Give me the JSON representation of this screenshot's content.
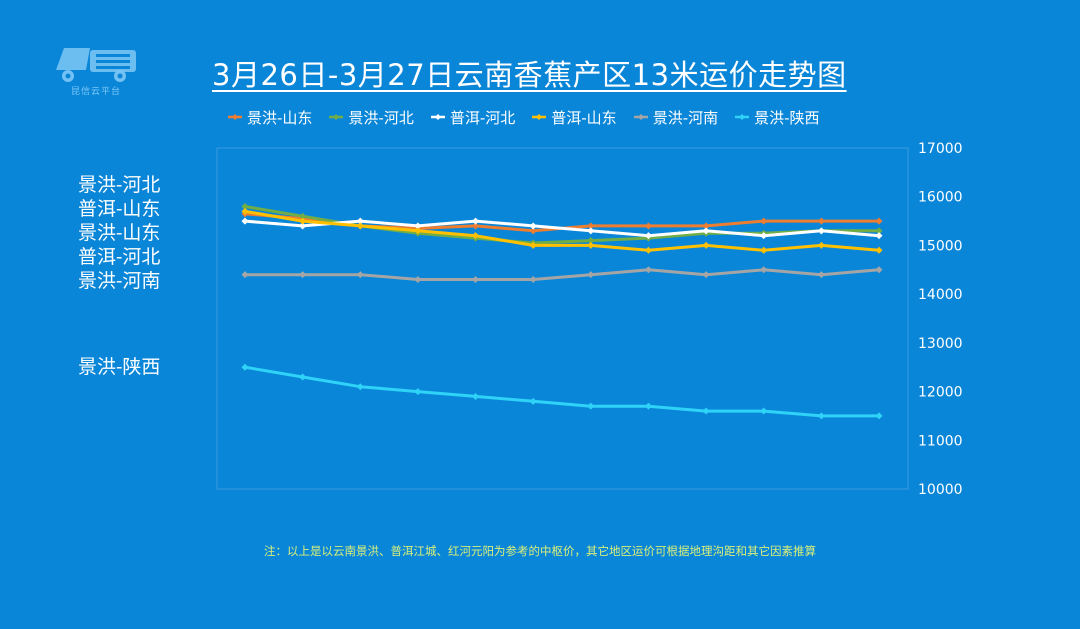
{
  "logo": {
    "icon": "truck-logo-icon",
    "caption": "昆信云平台"
  },
  "colors": {
    "background": "#0a86d8",
    "景洪-山东": "#ed7d31",
    "景洪-河北": "#70ad47",
    "普洱-河北": "#ffffff",
    "普洱-山东": "#ffc000",
    "景洪-河南": "#a5a5a5",
    "景洪-陕西": "#2ed3f7"
  },
  "side_labels": [
    "景洪-河北",
    "普洱-山东",
    "景洪-山东",
    "普洱-河北",
    "景洪-河南",
    "景洪-陕西"
  ],
  "note": "注：以上是以云南景洪、普洱江城、红河元阳为参考的中枢价，其它地区运价可根据地理沟距和其它因素推算",
  "chart_data": {
    "type": "line",
    "title": "3月26日-3月27日云南香蕉产区13米运价走势图",
    "xlabel": "",
    "ylabel": "",
    "ylim": [
      10000,
      17000
    ],
    "yticks": [
      "10000",
      "11000",
      "12000",
      "13000",
      "14000",
      "15000",
      "16000",
      "17000"
    ],
    "y_axis_position": "right",
    "grid": false,
    "legend_position": "top",
    "x": [
      1,
      2,
      3,
      4,
      5,
      6,
      7,
      8,
      9,
      10,
      11,
      12
    ],
    "series": [
      {
        "name": "景洪-山东",
        "values": [
          15650,
          15550,
          15400,
          15350,
          15400,
          15300,
          15400,
          15400,
          15400,
          15500,
          15500,
          15500
        ]
      },
      {
        "name": "景洪-河北",
        "values": [
          15800,
          15600,
          15400,
          15250,
          15150,
          15050,
          15100,
          15150,
          15250,
          15250,
          15300,
          15300
        ]
      },
      {
        "name": "普洱-河北",
        "values": [
          15500,
          15400,
          15500,
          15400,
          15500,
          15400,
          15300,
          15200,
          15300,
          15200,
          15300,
          15200
        ]
      },
      {
        "name": "普洱-山东",
        "values": [
          15700,
          15500,
          15400,
          15300,
          15200,
          15000,
          15000,
          14900,
          15000,
          14900,
          15000,
          14900
        ]
      },
      {
        "name": "景洪-河南",
        "values": [
          14400,
          14400,
          14400,
          14300,
          14300,
          14300,
          14400,
          14500,
          14400,
          14500,
          14400,
          14500
        ]
      },
      {
        "name": "景洪-陕西",
        "values": [
          12500,
          12300,
          12100,
          12000,
          11900,
          11800,
          11700,
          11700,
          11600,
          11600,
          11500,
          11500
        ]
      }
    ]
  }
}
